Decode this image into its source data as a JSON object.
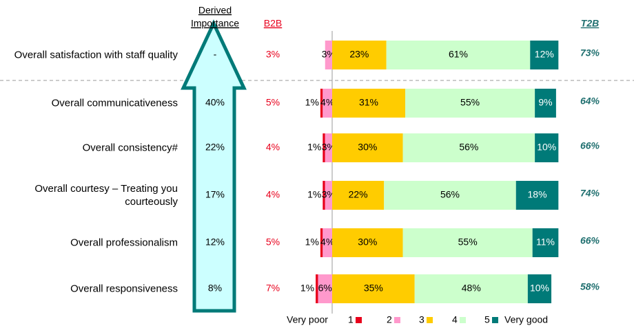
{
  "chart_data": {
    "type": "bar",
    "orientation": "diverging-horizontal",
    "categories": [
      "Overall satisfaction with staff quality",
      "Overall communicativeness",
      "Overall consistency#",
      "Overall courtesy – Treating you courteously",
      "Overall professionalism",
      "Overall responsiveness"
    ],
    "importance": {
      "header": [
        "Derived",
        "Importance"
      ],
      "values": [
        "-",
        "40%",
        "22%",
        "17%",
        "12%",
        "8%"
      ]
    },
    "b2b": {
      "header": "B2B",
      "values": [
        "3%",
        "5%",
        "4%",
        "4%",
        "5%",
        "7%"
      ]
    },
    "t2b": {
      "header": "T2B",
      "values": [
        "73%",
        "64%",
        "66%",
        "74%",
        "66%",
        "58%"
      ]
    },
    "series": [
      {
        "name": "1",
        "color": "#e8001c",
        "values": [
          0,
          1,
          1,
          1,
          1,
          1
        ],
        "value_labels": [
          null,
          "1%",
          "1%",
          "1%",
          "1%",
          "1%"
        ]
      },
      {
        "name": "2",
        "color": "#ff99cc",
        "values": [
          3,
          4,
          3,
          3,
          4,
          6
        ],
        "value_labels": [
          "3%",
          "4%",
          "3%",
          "3%",
          "4%",
          "6%"
        ]
      },
      {
        "name": "3",
        "color": "#ffcc00",
        "values": [
          23,
          31,
          30,
          22,
          30,
          35
        ],
        "value_labels": [
          "23%",
          "31%",
          "30%",
          "22%",
          "30%",
          "35%"
        ]
      },
      {
        "name": "4",
        "color": "#ccffcc",
        "values": [
          61,
          55,
          56,
          56,
          55,
          48
        ],
        "value_labels": [
          "61%",
          "55%",
          "56%",
          "56%",
          "55%",
          "48%"
        ]
      },
      {
        "name": "5",
        "color": "#007a78",
        "values": [
          12,
          9,
          10,
          18,
          11,
          10
        ],
        "value_labels": [
          "12%",
          "9%",
          "10%",
          "18%",
          "11%",
          "10%"
        ]
      }
    ],
    "legend_low": "Very poor",
    "legend_high": "Very good"
  }
}
